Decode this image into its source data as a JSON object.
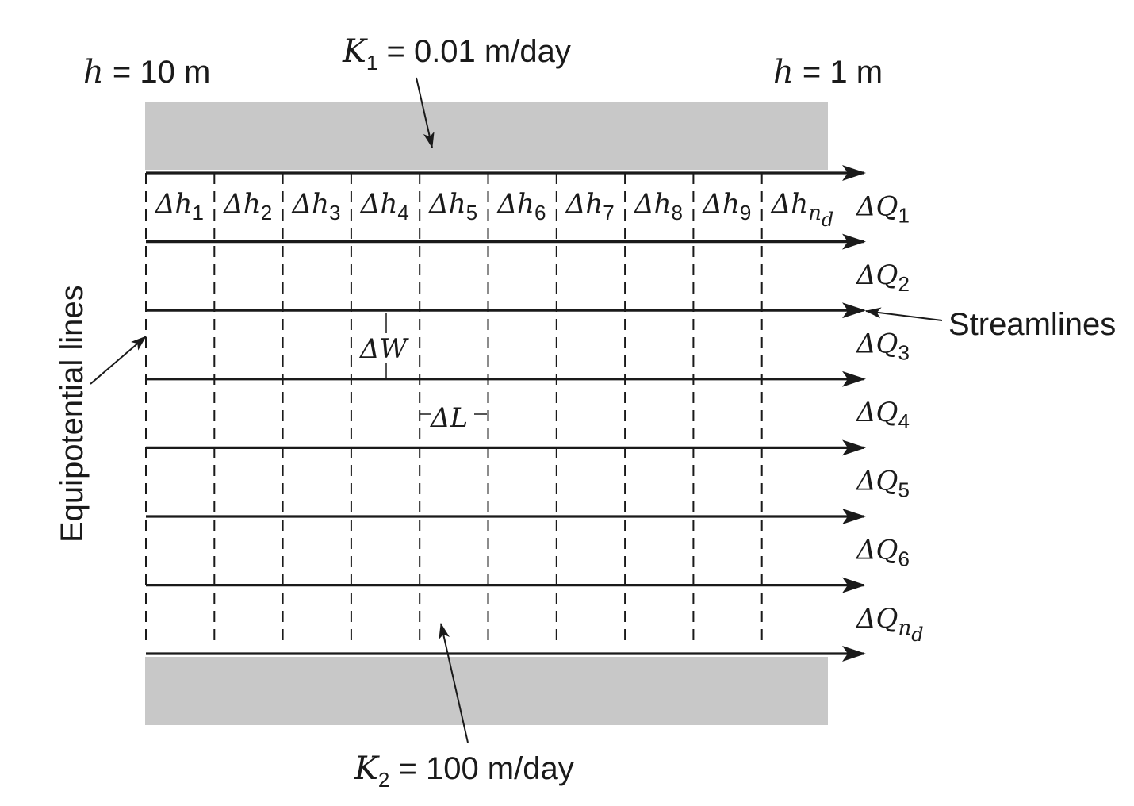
{
  "labels": {
    "k1": {
      "sym": "K",
      "sub": "1",
      "rest": " = 0.01 m/day"
    },
    "k2": {
      "sym": "K",
      "sub": "2",
      "rest": " = 100 m/day"
    },
    "h_left": {
      "sym": "h",
      "rest": " = 10 m"
    },
    "h_right": {
      "sym": "h",
      "rest": " = 1 m"
    },
    "streamlines": "Streamlines",
    "equipotential": "Equipotential lines",
    "delta_w": "ΔW",
    "delta_l": "ΔL"
  },
  "head_drops": [
    {
      "sym": "Δh",
      "sub": "1"
    },
    {
      "sym": "Δh",
      "sub": "2"
    },
    {
      "sym": "Δh",
      "sub": "3"
    },
    {
      "sym": "Δh",
      "sub": "4"
    },
    {
      "sym": "Δh",
      "sub": "5"
    },
    {
      "sym": "Δh",
      "sub": "6"
    },
    {
      "sym": "Δh",
      "sub": "7"
    },
    {
      "sym": "Δh",
      "sub": "8"
    },
    {
      "sym": "Δh",
      "sub": "9"
    },
    {
      "sym": "Δh",
      "sub": "n",
      "subsub": "d"
    }
  ],
  "flows": [
    {
      "sym": "ΔQ",
      "sub": "1"
    },
    {
      "sym": "ΔQ",
      "sub": "2"
    },
    {
      "sym": "ΔQ",
      "sub": "3"
    },
    {
      "sym": "ΔQ",
      "sub": "4"
    },
    {
      "sym": "ΔQ",
      "sub": "5"
    },
    {
      "sym": "ΔQ",
      "sub": "6"
    },
    {
      "sym": "ΔQ",
      "sub": "n",
      "subsub": "d"
    }
  ],
  "colors": {
    "layer": "#c8c8c8",
    "ink": "#1a1a1a"
  }
}
